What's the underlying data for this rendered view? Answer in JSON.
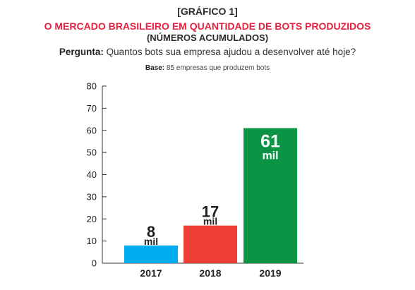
{
  "figure_label": "[GRÁFICO 1]",
  "question": {
    "label": "Pergunta:",
    "text": " Quantos bots sua empresa ajudou a desenvolver até hoje?"
  },
  "base": {
    "label": "Base:",
    "text": " 85 empresas que produzem bots"
  },
  "colors": {
    "title": "#e8213f",
    "text": "#222222"
  },
  "chart_data": {
    "type": "bar",
    "title": "O MERCADO BRASILEIRO EM QUANTIDADE DE BOTS PRODUZIDOS",
    "subtitle": "(NÚMEROS ACUMULADOS)",
    "xlabel": "",
    "ylabel": "",
    "categories": [
      "2017",
      "2018",
      "2019"
    ],
    "values": [
      8,
      17,
      61
    ],
    "value_labels": [
      "8",
      "17",
      "61"
    ],
    "value_unit": "mil",
    "bar_colors": [
      "#00aeef",
      "#ef3e33",
      "#0b9444"
    ],
    "value_label_colors": [
      "#231f20",
      "#231f20",
      "#ffffff"
    ],
    "ylim": [
      0,
      80
    ],
    "yticks": [
      "0",
      "10",
      "20",
      "30",
      "40",
      "50",
      "60",
      "70",
      "80"
    ],
    "grid": false,
    "legend": "none"
  }
}
